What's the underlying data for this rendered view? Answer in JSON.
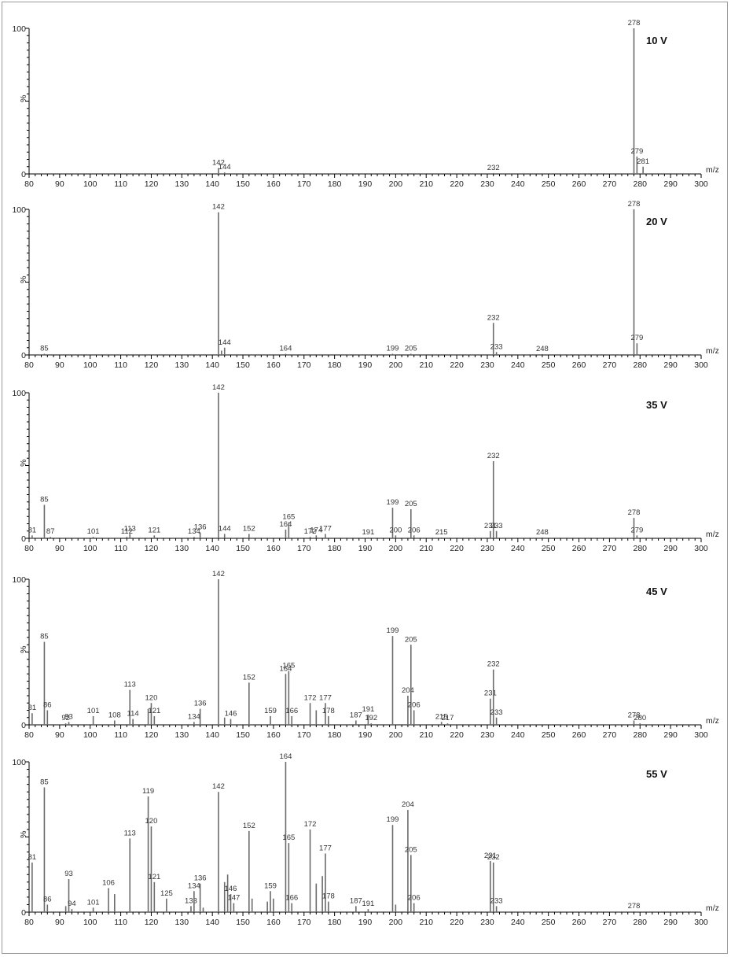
{
  "chart_data": [
    {
      "type": "bar",
      "voltage": "10 V",
      "xlabel": "m/z",
      "ylabel": "%",
      "xlim": [
        80,
        300
      ],
      "ylim": [
        0,
        100
      ],
      "x_ticks": [
        80,
        90,
        100,
        110,
        120,
        130,
        140,
        150,
        160,
        170,
        180,
        190,
        200,
        210,
        220,
        230,
        240,
        250,
        260,
        270,
        280,
        290,
        300
      ],
      "y_ticks": [
        0,
        100
      ],
      "peaks": [
        {
          "mz": 142,
          "intensity": 4,
          "label": "142"
        },
        {
          "mz": 144,
          "intensity": 1,
          "label": "144"
        },
        {
          "mz": 232,
          "intensity": 0.6,
          "label": "232"
        },
        {
          "mz": 278,
          "intensity": 100,
          "label": "278"
        },
        {
          "mz": 279,
          "intensity": 12,
          "label": "279"
        },
        {
          "mz": 281,
          "intensity": 5,
          "label": "281"
        }
      ]
    },
    {
      "type": "bar",
      "voltage": "20 V",
      "xlabel": "m/z",
      "ylabel": "%",
      "xlim": [
        80,
        300
      ],
      "ylim": [
        0,
        100
      ],
      "x_ticks": [
        80,
        90,
        100,
        110,
        120,
        130,
        140,
        150,
        160,
        170,
        180,
        190,
        200,
        210,
        220,
        230,
        240,
        250,
        260,
        270,
        280,
        290,
        300
      ],
      "y_ticks": [
        0,
        100
      ],
      "peaks": [
        {
          "mz": 85,
          "intensity": 0.8,
          "label": "85"
        },
        {
          "mz": 142,
          "intensity": 98,
          "label": "142"
        },
        {
          "mz": 143,
          "intensity": 3,
          "label": ""
        },
        {
          "mz": 144,
          "intensity": 5,
          "label": "144"
        },
        {
          "mz": 164,
          "intensity": 0.8,
          "label": "164"
        },
        {
          "mz": 199,
          "intensity": 0.8,
          "label": "199"
        },
        {
          "mz": 205,
          "intensity": 0.8,
          "label": "205"
        },
        {
          "mz": 232,
          "intensity": 22,
          "label": "232"
        },
        {
          "mz": 233,
          "intensity": 2,
          "label": "233"
        },
        {
          "mz": 248,
          "intensity": 0.6,
          "label": "248"
        },
        {
          "mz": 278,
          "intensity": 100,
          "label": "278"
        },
        {
          "mz": 279,
          "intensity": 8,
          "label": "279"
        }
      ]
    },
    {
      "type": "bar",
      "voltage": "35 V",
      "xlabel": "m/z",
      "ylabel": "%",
      "xlim": [
        80,
        300
      ],
      "ylim": [
        0,
        100
      ],
      "x_ticks": [
        80,
        90,
        100,
        110,
        120,
        130,
        140,
        150,
        160,
        170,
        180,
        190,
        200,
        210,
        220,
        230,
        240,
        250,
        260,
        270,
        280,
        290,
        300
      ],
      "y_ticks": [
        0,
        100
      ],
      "peaks": [
        {
          "mz": 81,
          "intensity": 2,
          "label": "81"
        },
        {
          "mz": 85,
          "intensity": 23,
          "label": "85"
        },
        {
          "mz": 87,
          "intensity": 1,
          "label": "87"
        },
        {
          "mz": 101,
          "intensity": 1,
          "label": "101"
        },
        {
          "mz": 112,
          "intensity": 1,
          "label": "112"
        },
        {
          "mz": 113,
          "intensity": 3,
          "label": "113"
        },
        {
          "mz": 121,
          "intensity": 2,
          "label": "121"
        },
        {
          "mz": 134,
          "intensity": 1,
          "label": "134"
        },
        {
          "mz": 136,
          "intensity": 4,
          "label": "136"
        },
        {
          "mz": 142,
          "intensity": 100,
          "label": "142"
        },
        {
          "mz": 144,
          "intensity": 3,
          "label": "144"
        },
        {
          "mz": 152,
          "intensity": 3,
          "label": "152"
        },
        {
          "mz": 164,
          "intensity": 6,
          "label": "164"
        },
        {
          "mz": 165,
          "intensity": 11,
          "label": "165"
        },
        {
          "mz": 172,
          "intensity": 1,
          "label": "172"
        },
        {
          "mz": 174,
          "intensity": 2,
          "label": "174"
        },
        {
          "mz": 177,
          "intensity": 3,
          "label": "177"
        },
        {
          "mz": 191,
          "intensity": 0.6,
          "label": "191"
        },
        {
          "mz": 199,
          "intensity": 21,
          "label": "199"
        },
        {
          "mz": 200,
          "intensity": 2,
          "label": "200"
        },
        {
          "mz": 205,
          "intensity": 20,
          "label": "205"
        },
        {
          "mz": 206,
          "intensity": 2,
          "label": "206"
        },
        {
          "mz": 215,
          "intensity": 0.6,
          "label": "215"
        },
        {
          "mz": 231,
          "intensity": 5,
          "label": "231"
        },
        {
          "mz": 232,
          "intensity": 53,
          "label": "232"
        },
        {
          "mz": 233,
          "intensity": 5,
          "label": "233"
        },
        {
          "mz": 248,
          "intensity": 0.6,
          "label": "248"
        },
        {
          "mz": 278,
          "intensity": 14,
          "label": "278"
        },
        {
          "mz": 279,
          "intensity": 2,
          "label": "279"
        }
      ]
    },
    {
      "type": "bar",
      "voltage": "45 V",
      "xlabel": "m/z",
      "ylabel": "%",
      "xlim": [
        80,
        300
      ],
      "ylim": [
        0,
        100
      ],
      "x_ticks": [
        80,
        90,
        100,
        110,
        120,
        130,
        140,
        150,
        160,
        170,
        180,
        190,
        200,
        210,
        220,
        230,
        240,
        250,
        260,
        270,
        280,
        290,
        300
      ],
      "y_ticks": [
        0,
        100
      ],
      "peaks": [
        {
          "mz": 81,
          "intensity": 8,
          "label": "81"
        },
        {
          "mz": 85,
          "intensity": 57,
          "label": "85"
        },
        {
          "mz": 86,
          "intensity": 10,
          "label": "86"
        },
        {
          "mz": 92,
          "intensity": 1,
          "label": "92"
        },
        {
          "mz": 93,
          "intensity": 2,
          "label": "93"
        },
        {
          "mz": 101,
          "intensity": 6,
          "label": "101"
        },
        {
          "mz": 108,
          "intensity": 3,
          "label": "108"
        },
        {
          "mz": 113,
          "intensity": 24,
          "label": "113"
        },
        {
          "mz": 114,
          "intensity": 4,
          "label": "114"
        },
        {
          "mz": 119,
          "intensity": 11,
          "label": ""
        },
        {
          "mz": 120,
          "intensity": 15,
          "label": "120"
        },
        {
          "mz": 121,
          "intensity": 6,
          "label": "121"
        },
        {
          "mz": 134,
          "intensity": 2,
          "label": "134"
        },
        {
          "mz": 136,
          "intensity": 11,
          "label": "136"
        },
        {
          "mz": 142,
          "intensity": 100,
          "label": "142"
        },
        {
          "mz": 144,
          "intensity": 5,
          "label": ""
        },
        {
          "mz": 146,
          "intensity": 4,
          "label": "146"
        },
        {
          "mz": 152,
          "intensity": 29,
          "label": "152"
        },
        {
          "mz": 159,
          "intensity": 6,
          "label": "159"
        },
        {
          "mz": 164,
          "intensity": 35,
          "label": "164"
        },
        {
          "mz": 165,
          "intensity": 37,
          "label": "165"
        },
        {
          "mz": 166,
          "intensity": 6,
          "label": "166"
        },
        {
          "mz": 172,
          "intensity": 15,
          "label": "172"
        },
        {
          "mz": 174,
          "intensity": 10,
          "label": ""
        },
        {
          "mz": 177,
          "intensity": 15,
          "label": "177"
        },
        {
          "mz": 178,
          "intensity": 6,
          "label": "178"
        },
        {
          "mz": 187,
          "intensity": 3,
          "label": "187"
        },
        {
          "mz": 191,
          "intensity": 7,
          "label": "191"
        },
        {
          "mz": 192,
          "intensity": 1,
          "label": "192"
        },
        {
          "mz": 199,
          "intensity": 61,
          "label": "199"
        },
        {
          "mz": 204,
          "intensity": 20,
          "label": "204"
        },
        {
          "mz": 205,
          "intensity": 55,
          "label": "205"
        },
        {
          "mz": 206,
          "intensity": 10,
          "label": "206"
        },
        {
          "mz": 215,
          "intensity": 2,
          "label": "215"
        },
        {
          "mz": 217,
          "intensity": 1,
          "label": "217"
        },
        {
          "mz": 231,
          "intensity": 18,
          "label": "231"
        },
        {
          "mz": 232,
          "intensity": 38,
          "label": "232"
        },
        {
          "mz": 233,
          "intensity": 5,
          "label": "233"
        },
        {
          "mz": 278,
          "intensity": 3,
          "label": "278"
        },
        {
          "mz": 280,
          "intensity": 1,
          "label": "280"
        }
      ]
    },
    {
      "type": "bar",
      "voltage": "55 V",
      "xlabel": "m/z",
      "ylabel": "%",
      "xlim": [
        80,
        300
      ],
      "ylim": [
        0,
        100
      ],
      "x_ticks": [
        80,
        90,
        100,
        110,
        120,
        130,
        140,
        150,
        160,
        170,
        180,
        190,
        200,
        210,
        220,
        230,
        240,
        250,
        260,
        270,
        280,
        290,
        300
      ],
      "y_ticks": [
        0,
        100
      ],
      "peaks": [
        {
          "mz": 81,
          "intensity": 33,
          "label": "81"
        },
        {
          "mz": 85,
          "intensity": 83,
          "label": "85"
        },
        {
          "mz": 86,
          "intensity": 5,
          "label": "86"
        },
        {
          "mz": 92,
          "intensity": 4,
          "label": ""
        },
        {
          "mz": 93,
          "intensity": 22,
          "label": "93"
        },
        {
          "mz": 94,
          "intensity": 2,
          "label": "94"
        },
        {
          "mz": 101,
          "intensity": 3,
          "label": "101"
        },
        {
          "mz": 106,
          "intensity": 16,
          "label": "106"
        },
        {
          "mz": 108,
          "intensity": 12,
          "label": ""
        },
        {
          "mz": 113,
          "intensity": 49,
          "label": "113"
        },
        {
          "mz": 119,
          "intensity": 77,
          "label": "119"
        },
        {
          "mz": 120,
          "intensity": 57,
          "label": "120"
        },
        {
          "mz": 121,
          "intensity": 20,
          "label": "121"
        },
        {
          "mz": 125,
          "intensity": 9,
          "label": "125"
        },
        {
          "mz": 133,
          "intensity": 4,
          "label": "133"
        },
        {
          "mz": 134,
          "intensity": 14,
          "label": "134"
        },
        {
          "mz": 136,
          "intensity": 19,
          "label": "136"
        },
        {
          "mz": 137,
          "intensity": 3,
          "label": ""
        },
        {
          "mz": 142,
          "intensity": 80,
          "label": "142"
        },
        {
          "mz": 144,
          "intensity": 20,
          "label": ""
        },
        {
          "mz": 145,
          "intensity": 25,
          "label": ""
        },
        {
          "mz": 146,
          "intensity": 12,
          "label": "146"
        },
        {
          "mz": 147,
          "intensity": 6,
          "label": "147"
        },
        {
          "mz": 152,
          "intensity": 54,
          "label": "152"
        },
        {
          "mz": 153,
          "intensity": 9,
          "label": ""
        },
        {
          "mz": 158,
          "intensity": 7,
          "label": ""
        },
        {
          "mz": 159,
          "intensity": 14,
          "label": "159"
        },
        {
          "mz": 160,
          "intensity": 9,
          "label": ""
        },
        {
          "mz": 164,
          "intensity": 100,
          "label": "164"
        },
        {
          "mz": 165,
          "intensity": 46,
          "label": "165"
        },
        {
          "mz": 166,
          "intensity": 6,
          "label": "166"
        },
        {
          "mz": 172,
          "intensity": 55,
          "label": "172"
        },
        {
          "mz": 174,
          "intensity": 19,
          "label": ""
        },
        {
          "mz": 176,
          "intensity": 24,
          "label": ""
        },
        {
          "mz": 177,
          "intensity": 39,
          "label": "177"
        },
        {
          "mz": 178,
          "intensity": 7,
          "label": "178"
        },
        {
          "mz": 187,
          "intensity": 4,
          "label": "187"
        },
        {
          "mz": 191,
          "intensity": 2,
          "label": "191"
        },
        {
          "mz": 199,
          "intensity": 58,
          "label": "199"
        },
        {
          "mz": 200,
          "intensity": 5,
          "label": ""
        },
        {
          "mz": 204,
          "intensity": 68,
          "label": "204"
        },
        {
          "mz": 205,
          "intensity": 38,
          "label": "205"
        },
        {
          "mz": 206,
          "intensity": 6,
          "label": "206"
        },
        {
          "mz": 231,
          "intensity": 34,
          "label": "231"
        },
        {
          "mz": 232,
          "intensity": 33,
          "label": "232"
        },
        {
          "mz": 233,
          "intensity": 4,
          "label": "233"
        },
        {
          "mz": 278,
          "intensity": 0.5,
          "label": "278"
        }
      ]
    }
  ],
  "colors": {
    "peak": "#6b6b6b",
    "axis": "#000000",
    "frame": "#9a9a9a"
  }
}
